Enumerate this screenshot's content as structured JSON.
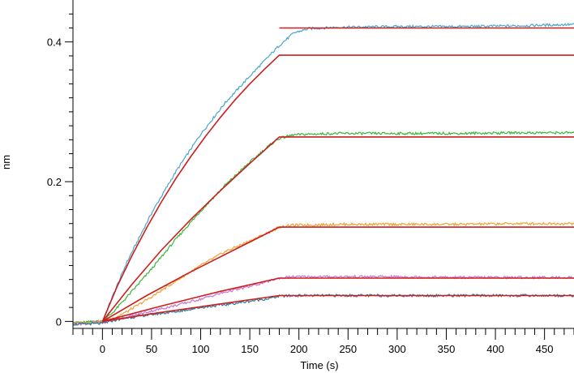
{
  "chart_data": {
    "type": "line",
    "title": "",
    "xlabel": "Time (s)",
    "ylabel": "nm",
    "xlim": [
      -30,
      480
    ],
    "ylim": [
      -0.01,
      0.46
    ],
    "x_ticks": [
      0,
      50,
      100,
      150,
      200,
      250,
      300,
      350,
      400,
      450
    ],
    "y_ticks": [
      0,
      0.2,
      0.4
    ],
    "y_tick_labels": [
      "0",
      "0.2",
      "0.4"
    ],
    "grid": false,
    "legend": "none",
    "association_end": 180,
    "series": [
      {
        "color": "#4aa6c8",
        "role": "measured",
        "x": [
          -30,
          0,
          10,
          25,
          50,
          75,
          100,
          125,
          150,
          165,
          180,
          195,
          210,
          240,
          300,
          360,
          420,
          480
        ],
        "y": [
          -0.002,
          0.0,
          0.035,
          0.085,
          0.155,
          0.215,
          0.268,
          0.313,
          0.351,
          0.373,
          0.395,
          0.413,
          0.419,
          0.421,
          0.422,
          0.422,
          0.423,
          0.425
        ]
      },
      {
        "color": "#38b836",
        "role": "measured",
        "x": [
          -30,
          0,
          10,
          25,
          50,
          75,
          100,
          125,
          150,
          170,
          180,
          195,
          210,
          240,
          300,
          360,
          420,
          480
        ],
        "y": [
          -0.002,
          0.0,
          0.012,
          0.035,
          0.075,
          0.118,
          0.158,
          0.195,
          0.228,
          0.252,
          0.262,
          0.267,
          0.268,
          0.269,
          0.269,
          0.269,
          0.27,
          0.27
        ]
      },
      {
        "color": "#f0a030",
        "role": "measured",
        "x": [
          -30,
          0,
          10,
          25,
          50,
          75,
          100,
          125,
          150,
          170,
          180,
          195,
          210,
          240,
          300,
          360,
          420,
          480
        ],
        "y": [
          -0.002,
          0.0,
          0.004,
          0.014,
          0.035,
          0.058,
          0.08,
          0.1,
          0.115,
          0.128,
          0.135,
          0.138,
          0.138,
          0.139,
          0.139,
          0.139,
          0.14,
          0.14
        ]
      },
      {
        "color": "#d070d0",
        "role": "measured",
        "x": [
          -30,
          0,
          10,
          25,
          50,
          75,
          100,
          125,
          150,
          170,
          180,
          195,
          210,
          240,
          300,
          360,
          420,
          480
        ],
        "y": [
          -0.004,
          -0.002,
          0.002,
          0.006,
          0.015,
          0.023,
          0.032,
          0.042,
          0.05,
          0.058,
          0.062,
          0.064,
          0.064,
          0.064,
          0.064,
          0.063,
          0.063,
          0.063
        ]
      },
      {
        "color": "#2a7a9a",
        "role": "measured",
        "x": [
          -30,
          0,
          10,
          25,
          50,
          75,
          100,
          125,
          150,
          170,
          180,
          195,
          210,
          240,
          300,
          360,
          420,
          480
        ],
        "y": [
          -0.004,
          -0.003,
          0.001,
          0.005,
          0.01,
          0.014,
          0.02,
          0.024,
          0.029,
          0.033,
          0.036,
          0.037,
          0.037,
          0.037,
          0.037,
          0.037,
          0.037,
          0.037
        ]
      },
      {
        "color": "#cc1f1f",
        "role": "fit",
        "x": [
          0,
          15,
          30,
          45,
          60,
          75,
          90,
          105,
          120,
          135,
          150,
          165,
          180,
          480
        ],
        "y": [
          0.0,
          0.05,
          0.094,
          0.134,
          0.171,
          0.205,
          0.236,
          0.265,
          0.292,
          0.317,
          0.34,
          0.361,
          0.381,
          0.381
        ]
      },
      {
        "color": "#cc1f1f",
        "role": "fit-level",
        "x": [
          180,
          480
        ],
        "y": [
          0.42,
          0.42
        ]
      },
      {
        "color": "#cc1f1f",
        "role": "fit",
        "x": [
          0,
          30,
          60,
          90,
          120,
          150,
          180,
          480
        ],
        "y": [
          0.0,
          0.053,
          0.102,
          0.146,
          0.187,
          0.226,
          0.264,
          0.264
        ]
      },
      {
        "color": "#cc1f1f",
        "role": "fit",
        "x": [
          0,
          45,
          90,
          135,
          180,
          480
        ],
        "y": [
          0.0,
          0.037,
          0.071,
          0.103,
          0.135,
          0.135
        ]
      },
      {
        "color": "#cc1f1f",
        "role": "fit",
        "x": [
          0,
          60,
          120,
          180,
          480
        ],
        "y": [
          0.0,
          0.022,
          0.043,
          0.062,
          0.062
        ]
      },
      {
        "color": "#cc1f1f",
        "role": "fit",
        "x": [
          0,
          60,
          120,
          180,
          480
        ],
        "y": [
          0.0,
          0.013,
          0.025,
          0.037,
          0.037
        ]
      }
    ]
  }
}
